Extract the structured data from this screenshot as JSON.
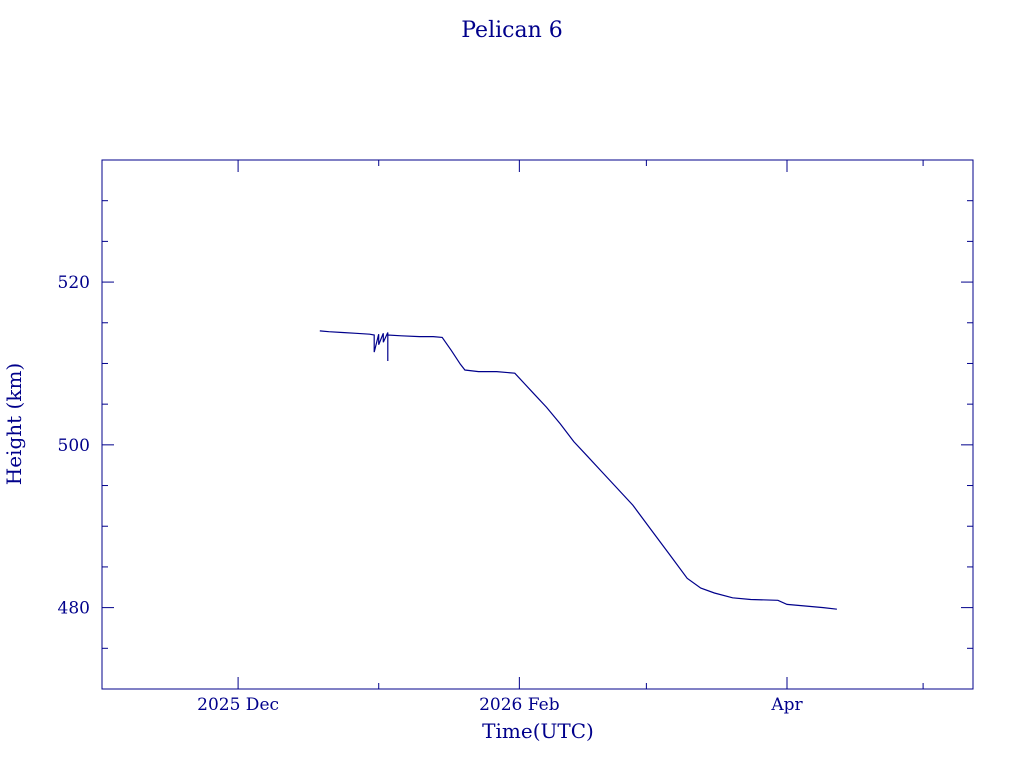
{
  "colors": {
    "ink": "#00008b",
    "background": "#ffffff"
  },
  "chart_data": {
    "type": "line",
    "title": "Pelican 6",
    "xlabel": "Time(UTC)",
    "ylabel": "Height (km)",
    "x_axis_type": "date",
    "xlim": [
      "2025-11-01",
      "2026-05-12"
    ],
    "ylim": [
      470,
      535
    ],
    "x_ticks": [
      {
        "date": "2025-12-01",
        "label": "2025 Dec"
      },
      {
        "date": "2026-02-01",
        "label": "2026 Feb"
      },
      {
        "date": "2026-04-01",
        "label": "Apr"
      }
    ],
    "y_ticks": [
      480,
      500,
      520
    ],
    "grid": false,
    "series": [
      {
        "color": "#00008b",
        "points": [
          [
            "2025-12-19",
            514.0
          ],
          [
            "2025-12-21",
            513.9
          ],
          [
            "2025-12-24",
            513.8
          ],
          [
            "2025-12-27",
            513.7
          ],
          [
            "2025-12-30",
            513.6
          ],
          [
            "2025-12-31",
            513.5
          ],
          [
            "2025-12-31",
            511.4
          ],
          [
            "2026-01-01",
            513.6
          ],
          [
            "2026-01-01",
            512.3
          ],
          [
            "2026-01-02",
            513.7
          ],
          [
            "2026-01-02",
            512.6
          ],
          [
            "2026-01-03",
            513.8
          ],
          [
            "2026-01-03",
            510.3
          ],
          [
            "2026-01-03",
            513.5
          ],
          [
            "2026-01-06",
            513.4
          ],
          [
            "2026-01-10",
            513.3
          ],
          [
            "2026-01-13",
            513.3
          ],
          [
            "2026-01-15",
            513.2
          ],
          [
            "2026-01-17",
            511.6
          ],
          [
            "2026-01-19",
            509.9
          ],
          [
            "2026-01-20",
            509.2
          ],
          [
            "2026-01-23",
            509.0
          ],
          [
            "2026-01-27",
            509.0
          ],
          [
            "2026-01-31",
            508.8
          ],
          [
            "2026-02-02",
            507.6
          ],
          [
            "2026-02-04",
            506.4
          ],
          [
            "2026-02-07",
            504.6
          ],
          [
            "2026-02-10",
            502.6
          ],
          [
            "2026-02-13",
            500.4
          ],
          [
            "2026-02-16",
            498.6
          ],
          [
            "2026-02-19",
            496.8
          ],
          [
            "2026-02-22",
            495.0
          ],
          [
            "2026-02-26",
            492.6
          ],
          [
            "2026-03-02",
            489.6
          ],
          [
            "2026-03-06",
            486.6
          ],
          [
            "2026-03-10",
            483.6
          ],
          [
            "2026-03-13",
            482.4
          ],
          [
            "2026-03-16",
            481.8
          ],
          [
            "2026-03-20",
            481.2
          ],
          [
            "2026-03-24",
            481.0
          ],
          [
            "2026-03-30",
            480.9
          ],
          [
            "2026-04-01",
            480.4
          ],
          [
            "2026-04-05",
            480.2
          ],
          [
            "2026-04-09",
            480.0
          ],
          [
            "2026-04-12",
            479.8
          ]
        ]
      }
    ]
  }
}
